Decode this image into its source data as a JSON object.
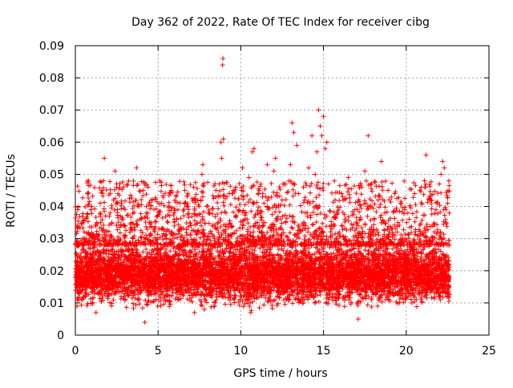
{
  "chart_data": {
    "type": "scatter",
    "title": "Day 362 of 2022, Rate Of TEC Index for receiver cibg",
    "xlabel": "GPS time / hours",
    "ylabel": "ROTI / TECUs",
    "xlim": [
      0,
      25
    ],
    "ylim": [
      0,
      0.09
    ],
    "xticks": [
      0,
      5,
      10,
      15,
      20,
      25
    ],
    "yticks": [
      0,
      0.01,
      0.02,
      0.03,
      0.04,
      0.05,
      0.06,
      0.07,
      0.08,
      0.09
    ],
    "xtick_labels": [
      "0",
      "5",
      "10",
      "15",
      "20",
      "25"
    ],
    "ytick_labels": [
      "0",
      "0.01",
      "0.02",
      "0.03",
      "0.04",
      "0.05",
      "0.06",
      "0.07",
      "0.08",
      "0.09"
    ],
    "grid": true,
    "marker": "+",
    "marker_color": "#ff0000",
    "series": [
      {
        "values": [
          [
            0.1,
            0.009
          ],
          [
            0.2,
            0.028
          ],
          [
            0.3,
            0.016
          ],
          [
            0.45,
            0.03
          ],
          [
            0.6,
            0.012
          ],
          [
            0.7,
            0.022
          ],
          [
            0.75,
            0.044
          ],
          [
            0.9,
            0.031
          ],
          [
            1.0,
            0.018
          ],
          [
            1.1,
            0.026
          ],
          [
            1.25,
            0.007
          ],
          [
            1.3,
            0.035
          ],
          [
            1.5,
            0.041
          ],
          [
            1.6,
            0.045
          ],
          [
            1.7,
            0.048
          ],
          [
            1.75,
            0.055
          ],
          [
            1.8,
            0.032
          ],
          [
            1.9,
            0.02
          ],
          [
            2.1,
            0.038
          ],
          [
            2.2,
            0.014
          ],
          [
            2.3,
            0.042
          ],
          [
            2.4,
            0.051
          ],
          [
            2.5,
            0.046
          ],
          [
            2.6,
            0.029
          ],
          [
            2.8,
            0.036
          ],
          [
            3.0,
            0.021
          ],
          [
            3.2,
            0.028
          ],
          [
            3.4,
            0.033
          ],
          [
            3.6,
            0.013
          ],
          [
            3.7,
            0.052
          ],
          [
            3.9,
            0.025
          ],
          [
            4.1,
            0.045
          ],
          [
            4.2,
            0.004
          ],
          [
            4.3,
            0.038
          ],
          [
            4.4,
            0.046
          ],
          [
            4.6,
            0.031
          ],
          [
            4.8,
            0.019
          ],
          [
            5.0,
            0.027
          ],
          [
            5.2,
            0.041
          ],
          [
            5.4,
            0.012
          ],
          [
            5.5,
            0.022
          ],
          [
            5.6,
            0.035
          ],
          [
            5.8,
            0.045
          ],
          [
            6.0,
            0.016
          ],
          [
            6.2,
            0.039
          ],
          [
            6.4,
            0.028
          ],
          [
            6.6,
            0.041
          ],
          [
            6.8,
            0.021
          ],
          [
            7.0,
            0.034
          ],
          [
            7.2,
            0.007
          ],
          [
            7.3,
            0.042
          ],
          [
            7.5,
            0.032
          ],
          [
            7.65,
            0.05
          ],
          [
            7.7,
            0.053
          ],
          [
            7.9,
            0.024
          ],
          [
            8.1,
            0.038
          ],
          [
            8.3,
            0.017
          ],
          [
            8.5,
            0.045
          ],
          [
            8.7,
            0.047
          ],
          [
            8.8,
            0.06
          ],
          [
            8.85,
            0.055
          ],
          [
            8.9,
            0.084
          ],
          [
            8.92,
            0.086
          ],
          [
            8.95,
            0.061
          ],
          [
            9.1,
            0.038
          ],
          [
            9.3,
            0.026
          ],
          [
            9.5,
            0.044
          ],
          [
            9.7,
            0.046
          ],
          [
            9.9,
            0.019
          ],
          [
            10.1,
            0.052
          ],
          [
            10.3,
            0.03
          ],
          [
            10.5,
            0.049
          ],
          [
            10.6,
            0.007
          ],
          [
            10.7,
            0.057
          ],
          [
            10.8,
            0.058
          ],
          [
            11.0,
            0.035
          ],
          [
            11.2,
            0.022
          ],
          [
            11.4,
            0.041
          ],
          [
            11.6,
            0.053
          ],
          [
            11.8,
            0.027
          ],
          [
            12.0,
            0.051
          ],
          [
            12.1,
            0.055
          ],
          [
            12.2,
            0.036
          ],
          [
            12.4,
            0.015
          ],
          [
            12.5,
            0.042
          ],
          [
            12.7,
            0.047
          ],
          [
            12.9,
            0.025
          ],
          [
            13.0,
            0.053
          ],
          [
            13.1,
            0.066
          ],
          [
            13.2,
            0.063
          ],
          [
            13.4,
            0.059
          ],
          [
            13.5,
            0.044
          ],
          [
            13.7,
            0.028
          ],
          [
            13.9,
            0.038
          ],
          [
            14.1,
            0.052
          ],
          [
            14.3,
            0.062
          ],
          [
            14.5,
            0.05
          ],
          [
            14.6,
            0.057
          ],
          [
            14.7,
            0.07
          ],
          [
            14.8,
            0.065
          ],
          [
            14.9,
            0.062
          ],
          [
            15.0,
            0.068
          ],
          [
            15.1,
            0.058
          ],
          [
            15.2,
            0.06
          ],
          [
            15.3,
            0.047
          ],
          [
            15.5,
            0.033
          ],
          [
            15.7,
            0.042
          ],
          [
            15.9,
            0.02
          ],
          [
            16.1,
            0.044
          ],
          [
            16.3,
            0.036
          ],
          [
            16.5,
            0.049
          ],
          [
            16.7,
            0.028
          ],
          [
            16.9,
            0.039
          ],
          [
            17.1,
            0.005
          ],
          [
            17.3,
            0.046
          ],
          [
            17.5,
            0.051
          ],
          [
            17.7,
            0.062
          ],
          [
            17.9,
            0.033
          ],
          [
            18.1,
            0.024
          ],
          [
            18.3,
            0.042
          ],
          [
            18.5,
            0.054
          ],
          [
            18.7,
            0.038
          ],
          [
            18.9,
            0.045
          ],
          [
            19.1,
            0.029
          ],
          [
            19.3,
            0.044
          ],
          [
            19.5,
            0.035
          ],
          [
            19.7,
            0.041
          ],
          [
            19.9,
            0.018
          ],
          [
            20.1,
            0.038
          ],
          [
            20.3,
            0.027
          ],
          [
            20.5,
            0.044
          ],
          [
            20.7,
            0.031
          ],
          [
            20.9,
            0.046
          ],
          [
            21.1,
            0.048
          ],
          [
            21.2,
            0.056
          ],
          [
            21.4,
            0.043
          ],
          [
            21.6,
            0.019
          ],
          [
            21.8,
            0.039
          ],
          [
            22.0,
            0.047
          ],
          [
            22.1,
            0.05
          ],
          [
            22.2,
            0.054
          ],
          [
            22.3,
            0.052
          ],
          [
            22.4,
            0.035
          ],
          [
            22.5,
            0.041
          ],
          [
            22.6,
            0.028
          ]
        ]
      }
    ],
    "dense_band": {
      "x_range": [
        0,
        22.6
      ],
      "y_range": [
        0.007,
        0.03
      ],
      "description_value_points": 0
    }
  }
}
